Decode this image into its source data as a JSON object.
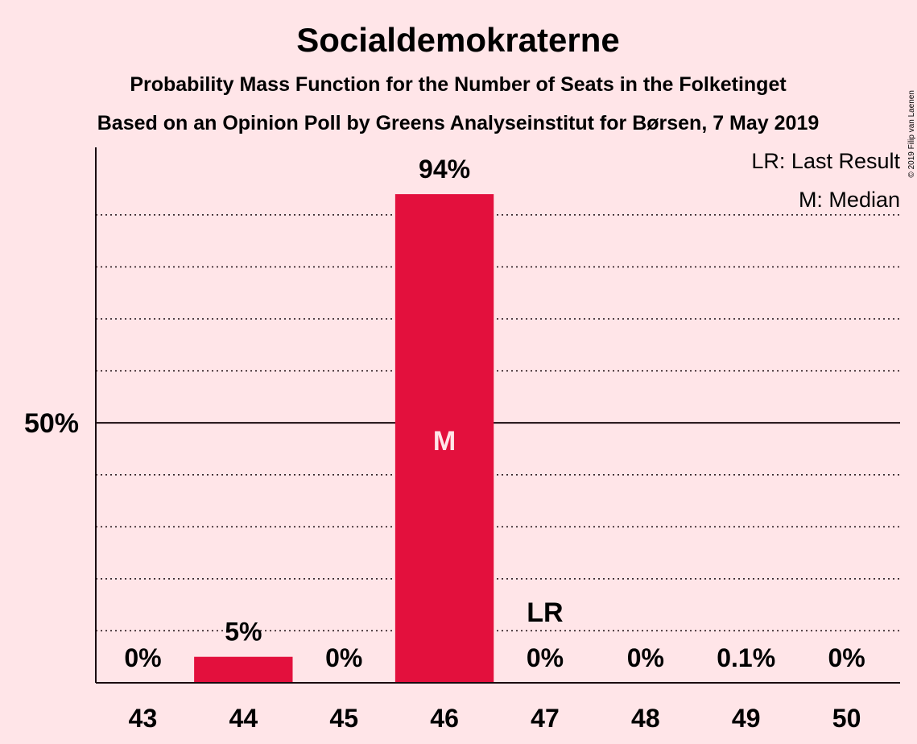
{
  "chart_data": {
    "type": "bar",
    "title": "Socialdemokraterne",
    "subtitle": "Probability Mass Function for the Number of Seats in the Folketinget",
    "subtitle2": "Based on an Opinion Poll by Greens Analyseinstitut for Børsen, 7 May 2019",
    "categories": [
      "43",
      "44",
      "45",
      "46",
      "47",
      "48",
      "49",
      "50"
    ],
    "values": [
      0,
      5,
      0,
      94,
      0,
      0,
      0.1,
      0
    ],
    "value_labels": [
      "0%",
      "5%",
      "0%",
      "94%",
      "0%",
      "0%",
      "0.1%",
      "0%"
    ],
    "ylim": [
      0,
      103
    ],
    "y_tick": {
      "value": 50,
      "label": "50%"
    },
    "grid_dotted_values": [
      10,
      20,
      30,
      40,
      60,
      70,
      80,
      90
    ],
    "median_category": "46",
    "median_marker": "M",
    "last_result_category": "47",
    "last_result_marker": "LR",
    "legend": [
      "LR: Last Result",
      "M: Median"
    ],
    "legend_position": "top-right",
    "bar_color": "#E3103D",
    "copyright": "© 2019 Filip van Laenen"
  }
}
